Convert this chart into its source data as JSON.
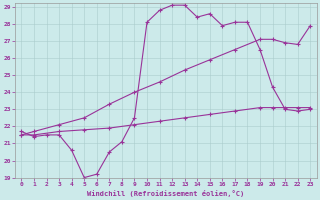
{
  "xlabel": "Windchill (Refroidissement éolien,°C)",
  "bg_color": "#cceaea",
  "line_color": "#993399",
  "xlim": [
    -0.5,
    23.5
  ],
  "ylim": [
    19,
    29.2
  ],
  "xticks": [
    0,
    1,
    2,
    3,
    4,
    5,
    6,
    7,
    8,
    9,
    10,
    11,
    12,
    13,
    14,
    15,
    16,
    17,
    18,
    19,
    20,
    21,
    22,
    23
  ],
  "yticks": [
    19,
    20,
    21,
    22,
    23,
    24,
    25,
    26,
    27,
    28,
    29
  ],
  "line1_x": [
    0,
    1,
    2,
    3,
    4,
    5,
    6,
    7,
    8,
    9,
    10,
    11,
    12,
    13,
    14,
    15,
    16,
    17,
    18,
    19,
    20,
    21,
    22,
    23
  ],
  "line1_y": [
    21.7,
    21.4,
    21.5,
    21.5,
    20.6,
    19.0,
    19.2,
    20.5,
    21.1,
    22.5,
    28.1,
    28.8,
    29.1,
    29.1,
    28.4,
    28.6,
    27.9,
    28.1,
    28.1,
    26.5,
    24.3,
    23.0,
    22.9,
    23.0
  ],
  "line2_x": [
    0,
    1,
    3,
    5,
    7,
    9,
    11,
    13,
    15,
    17,
    19,
    20,
    21,
    22,
    23
  ],
  "line2_y": [
    21.5,
    21.7,
    22.1,
    22.5,
    23.3,
    24.0,
    24.6,
    25.3,
    25.9,
    26.5,
    27.1,
    27.1,
    26.9,
    26.8,
    27.9
  ],
  "line3_x": [
    0,
    1,
    3,
    5,
    7,
    9,
    11,
    13,
    15,
    17,
    19,
    20,
    21,
    22,
    23
  ],
  "line3_y": [
    21.5,
    21.5,
    21.7,
    21.8,
    21.9,
    22.1,
    22.3,
    22.5,
    22.7,
    22.9,
    23.1,
    23.1,
    23.1,
    23.1,
    23.1
  ]
}
